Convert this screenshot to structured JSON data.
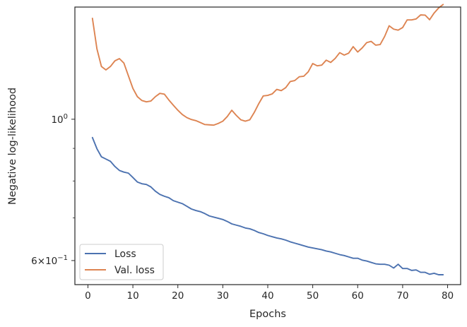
{
  "chart_data": {
    "type": "line",
    "xlabel": "Epochs",
    "ylabel": "Negative log-likelihood",
    "yscale": "log",
    "xlim": [
      -2.9,
      82.9
    ],
    "ylim": [
      0.55,
      1.5
    ],
    "x_ticks": [
      0,
      10,
      20,
      30,
      40,
      50,
      60,
      70,
      80
    ],
    "x_tick_labels": [
      "0",
      "10",
      "20",
      "30",
      "40",
      "50",
      "60",
      "70",
      "80"
    ],
    "y_major_ticks": [
      1.0,
      0.6
    ],
    "y_major_tick_labels": [
      {
        "base": "10",
        "exp": "0"
      },
      {
        "mantissa": "6",
        "times": "×",
        "base": "10",
        "exp": "−1"
      }
    ],
    "y_minor_ticks": [
      0.7,
      0.8,
      0.9
    ],
    "grid": false,
    "legend_position": "lower left",
    "series": [
      {
        "name": "Loss",
        "color": "#4c72b0",
        "x": [
          1,
          2,
          3,
          4,
          5,
          6,
          7,
          8,
          9,
          10,
          11,
          12,
          13,
          14,
          15,
          16,
          17,
          18,
          19,
          20,
          21,
          22,
          23,
          24,
          25,
          26,
          27,
          28,
          29,
          30,
          31,
          32,
          33,
          34,
          35,
          36,
          37,
          38,
          39,
          40,
          41,
          42,
          43,
          44,
          45,
          46,
          47,
          48,
          49,
          50,
          51,
          52,
          53,
          54,
          55,
          56,
          57,
          58,
          59,
          60,
          61,
          62,
          63,
          64,
          65,
          66,
          67,
          68,
          69,
          70,
          71,
          72,
          73,
          74,
          75,
          76,
          77,
          78,
          79
        ],
        "values": [
          0.936,
          0.899,
          0.873,
          0.866,
          0.859,
          0.843,
          0.831,
          0.826,
          0.823,
          0.81,
          0.797,
          0.792,
          0.79,
          0.783,
          0.771,
          0.762,
          0.757,
          0.753,
          0.745,
          0.741,
          0.737,
          0.73,
          0.723,
          0.719,
          0.716,
          0.711,
          0.705,
          0.702,
          0.699,
          0.696,
          0.691,
          0.685,
          0.682,
          0.679,
          0.675,
          0.673,
          0.669,
          0.664,
          0.661,
          0.657,
          0.654,
          0.651,
          0.649,
          0.646,
          0.642,
          0.639,
          0.636,
          0.633,
          0.63,
          0.628,
          0.626,
          0.624,
          0.621,
          0.619,
          0.616,
          0.613,
          0.611,
          0.608,
          0.605,
          0.605,
          0.601,
          0.599,
          0.596,
          0.593,
          0.592,
          0.592,
          0.59,
          0.584,
          0.592,
          0.583,
          0.583,
          0.579,
          0.58,
          0.575,
          0.575,
          0.571,
          0.573,
          0.57,
          0.57
        ]
      },
      {
        "name": "Val. loss",
        "color": "#dd8452",
        "x": [
          1,
          2,
          3,
          4,
          5,
          6,
          7,
          8,
          9,
          10,
          11,
          12,
          13,
          14,
          15,
          16,
          17,
          18,
          19,
          20,
          21,
          22,
          23,
          24,
          25,
          26,
          27,
          28,
          29,
          30,
          31,
          32,
          33,
          34,
          35,
          36,
          37,
          38,
          39,
          40,
          41,
          42,
          43,
          44,
          45,
          46,
          47,
          48,
          49,
          50,
          51,
          52,
          53,
          54,
          55,
          56,
          57,
          58,
          59,
          60,
          61,
          62,
          63,
          64,
          65,
          66,
          67,
          68,
          69,
          70,
          71,
          72,
          73,
          74,
          75,
          76,
          77,
          78,
          79
        ],
        "values": [
          1.44,
          1.29,
          1.21,
          1.195,
          1.21,
          1.235,
          1.245,
          1.225,
          1.17,
          1.118,
          1.085,
          1.07,
          1.065,
          1.068,
          1.085,
          1.098,
          1.095,
          1.072,
          1.052,
          1.033,
          1.017,
          1.006,
          0.999,
          0.995,
          0.988,
          0.981,
          0.98,
          0.979,
          0.985,
          0.993,
          1.01,
          1.033,
          1.014,
          0.998,
          0.993,
          0.998,
          1.025,
          1.058,
          1.088,
          1.09,
          1.096,
          1.114,
          1.109,
          1.121,
          1.146,
          1.15,
          1.166,
          1.168,
          1.187,
          1.223,
          1.213,
          1.216,
          1.238,
          1.228,
          1.246,
          1.272,
          1.261,
          1.27,
          1.3,
          1.275,
          1.294,
          1.319,
          1.325,
          1.307,
          1.31,
          1.349,
          1.402,
          1.385,
          1.38,
          1.393,
          1.432,
          1.432,
          1.437,
          1.458,
          1.457,
          1.433,
          1.468,
          1.495,
          1.514
        ]
      }
    ]
  }
}
